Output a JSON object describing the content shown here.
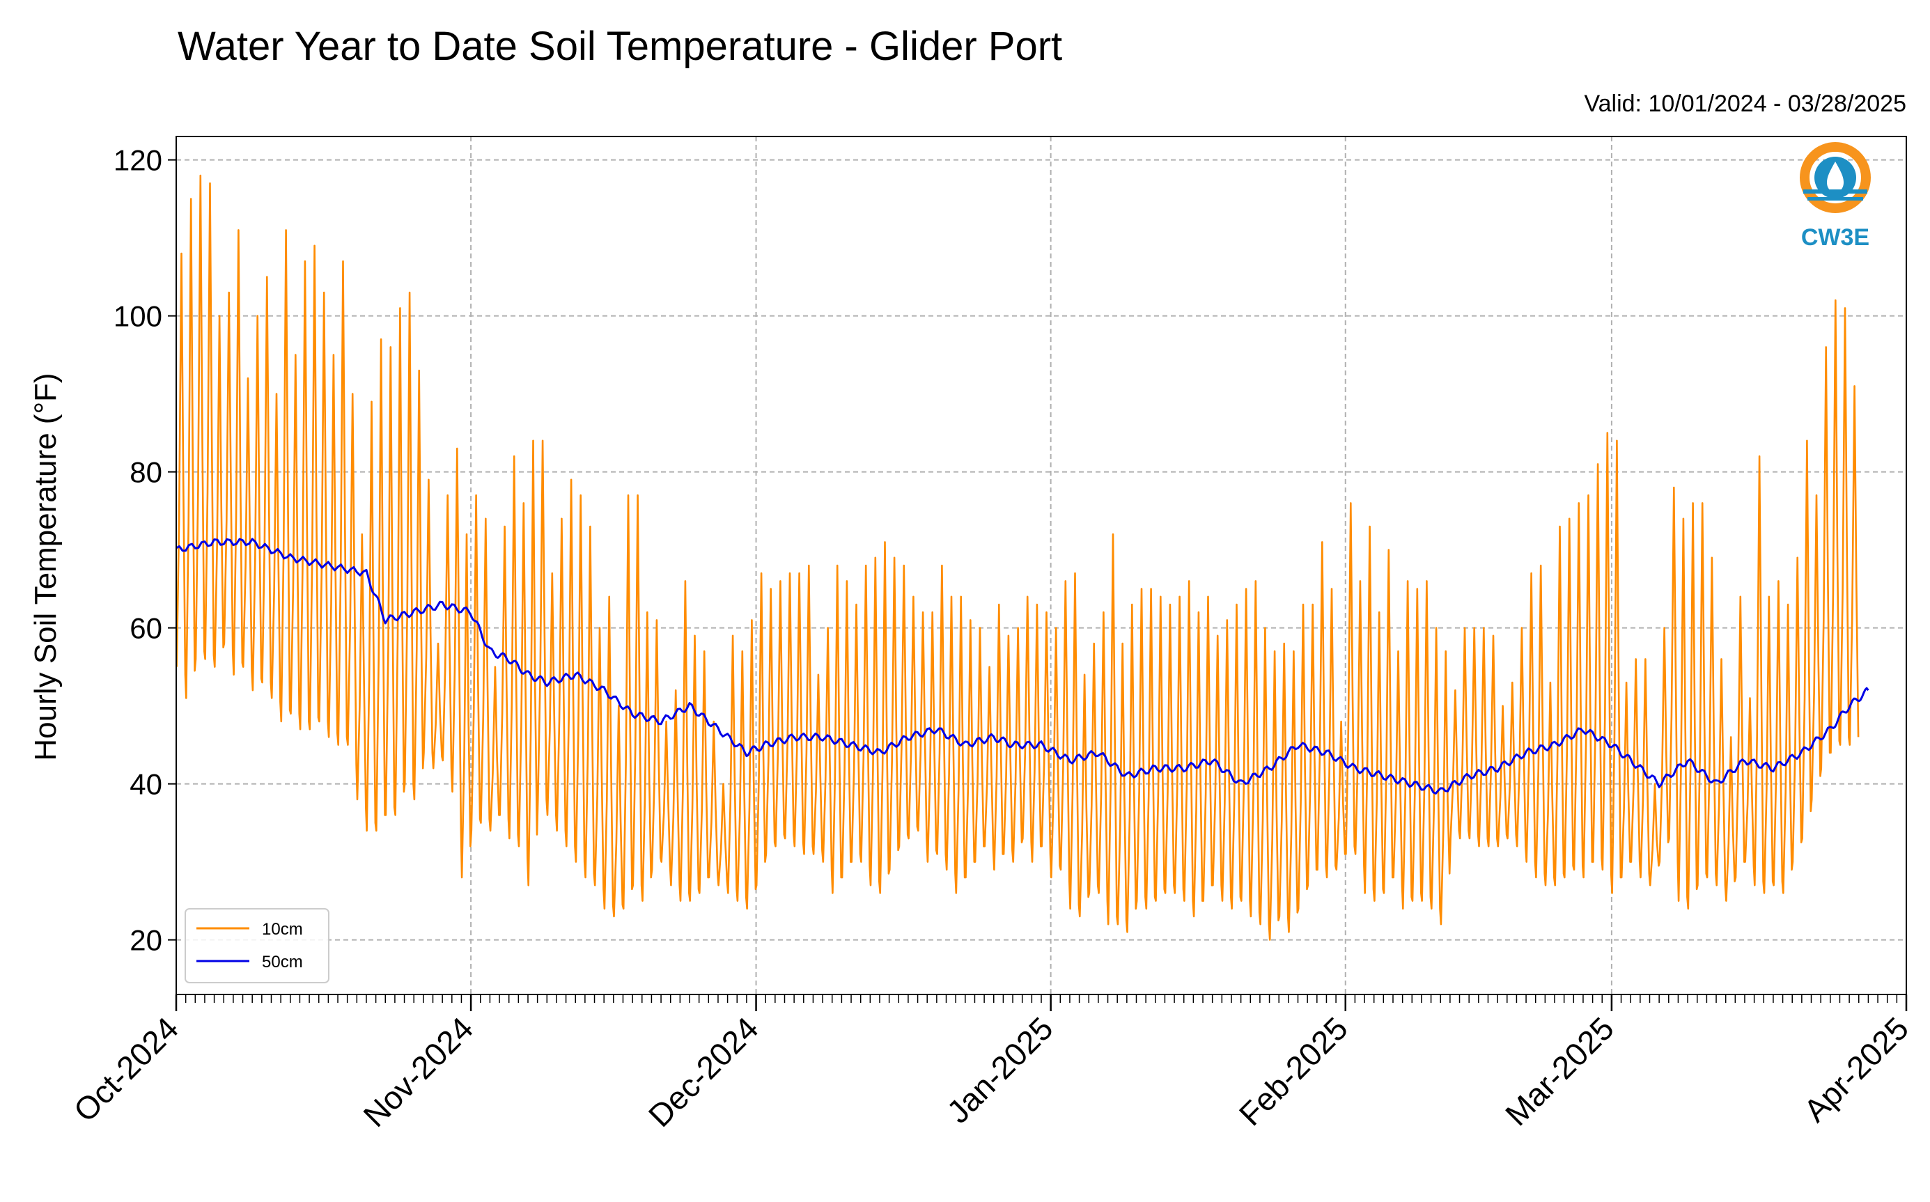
{
  "chart_data": {
    "type": "line",
    "title": "Water Year to Date Soil Temperature - Glider Port",
    "subtitle": "Valid: 10/01/2024 - 03/28/2025",
    "xlabel": "",
    "ylabel": "Hourly Soil Temperature (°F)",
    "ylim": [
      13,
      123
    ],
    "xlim": [
      "2024-10-01",
      "2025-04-01"
    ],
    "grid": true,
    "legend_placement": "lower-left",
    "logo_text": "CW3E",
    "x_ticks": [
      {
        "date": "2024-10-01",
        "label": "Oct-2024"
      },
      {
        "date": "2024-11-01",
        "label": "Nov-2024"
      },
      {
        "date": "2024-12-01",
        "label": "Dec-2024"
      },
      {
        "date": "2025-01-01",
        "label": "Jan-2025"
      },
      {
        "date": "2025-02-01",
        "label": "Feb-2025"
      },
      {
        "date": "2025-03-01",
        "label": "Mar-2025"
      },
      {
        "date": "2025-04-01",
        "label": "Apr-2025"
      }
    ],
    "y_ticks": [
      20,
      40,
      60,
      80,
      100,
      120
    ],
    "series": [
      {
        "name": "10cm",
        "color": "#ff8c00",
        "dates": [
          "2024-10-01",
          "2024-10-02",
          "2024-10-03",
          "2024-10-04",
          "2024-10-05",
          "2024-10-06",
          "2024-10-07",
          "2024-10-08",
          "2024-10-09",
          "2024-10-10",
          "2024-10-11",
          "2024-10-12",
          "2024-10-13",
          "2024-10-14",
          "2024-10-15",
          "2024-10-16",
          "2024-10-17",
          "2024-10-18",
          "2024-10-19",
          "2024-10-20",
          "2024-10-21",
          "2024-10-22",
          "2024-10-23",
          "2024-10-24",
          "2024-10-25",
          "2024-10-26",
          "2024-10-27",
          "2024-10-28",
          "2024-10-29",
          "2024-10-30",
          "2024-10-31",
          "2024-11-01",
          "2024-11-02",
          "2024-11-03",
          "2024-11-04",
          "2024-11-05",
          "2024-11-06",
          "2024-11-07",
          "2024-11-08",
          "2024-11-09",
          "2024-11-10",
          "2024-11-11",
          "2024-11-12",
          "2024-11-13",
          "2024-11-14",
          "2024-11-15",
          "2024-11-16",
          "2024-11-17",
          "2024-11-18",
          "2024-11-19",
          "2024-11-20",
          "2024-11-21",
          "2024-11-22",
          "2024-11-23",
          "2024-11-24",
          "2024-11-25",
          "2024-11-26",
          "2024-11-27",
          "2024-11-28",
          "2024-11-29",
          "2024-11-30",
          "2024-12-01",
          "2024-12-02",
          "2024-12-03",
          "2024-12-04",
          "2024-12-05",
          "2024-12-06",
          "2024-12-07",
          "2024-12-08",
          "2024-12-09",
          "2024-12-10",
          "2024-12-11",
          "2024-12-12",
          "2024-12-13",
          "2024-12-14",
          "2024-12-15",
          "2024-12-16",
          "2024-12-17",
          "2024-12-18",
          "2024-12-19",
          "2024-12-20",
          "2024-12-21",
          "2024-12-22",
          "2024-12-23",
          "2024-12-24",
          "2024-12-25",
          "2024-12-26",
          "2024-12-27",
          "2024-12-28",
          "2024-12-29",
          "2024-12-30",
          "2024-12-31",
          "2025-01-01",
          "2025-01-02",
          "2025-01-03",
          "2025-01-04",
          "2025-01-05",
          "2025-01-06",
          "2025-01-07",
          "2025-01-08",
          "2025-01-09",
          "2025-01-10",
          "2025-01-11",
          "2025-01-12",
          "2025-01-13",
          "2025-01-14",
          "2025-01-15",
          "2025-01-16",
          "2025-01-17",
          "2025-01-18",
          "2025-01-19",
          "2025-01-20",
          "2025-01-21",
          "2025-01-22",
          "2025-01-23",
          "2025-01-24",
          "2025-01-25",
          "2025-01-26",
          "2025-01-27",
          "2025-01-28",
          "2025-01-29",
          "2025-01-30",
          "2025-01-31",
          "2025-02-01",
          "2025-02-02",
          "2025-02-03",
          "2025-02-04",
          "2025-02-05",
          "2025-02-06",
          "2025-02-07",
          "2025-02-08",
          "2025-02-09",
          "2025-02-10",
          "2025-02-11",
          "2025-02-12",
          "2025-02-13",
          "2025-02-14",
          "2025-02-15",
          "2025-02-16",
          "2025-02-17",
          "2025-02-18",
          "2025-02-19",
          "2025-02-20",
          "2025-02-21",
          "2025-02-22",
          "2025-02-23",
          "2025-02-24",
          "2025-02-25",
          "2025-02-26",
          "2025-02-27",
          "2025-02-28",
          "2025-03-01",
          "2025-03-02",
          "2025-03-03",
          "2025-03-04",
          "2025-03-05",
          "2025-03-06",
          "2025-03-07",
          "2025-03-08",
          "2025-03-09",
          "2025-03-10",
          "2025-03-11",
          "2025-03-12",
          "2025-03-13",
          "2025-03-14",
          "2025-03-15",
          "2025-03-16",
          "2025-03-17",
          "2025-03-18",
          "2025-03-19",
          "2025-03-20",
          "2025-03-21",
          "2025-03-22",
          "2025-03-23",
          "2025-03-24",
          "2025-03-25",
          "2025-03-26",
          "2025-03-27",
          "2025-03-28"
        ],
        "daily_max": [
          108,
          115,
          118,
          117,
          100,
          103,
          111,
          92,
          100,
          105,
          90,
          111,
          95,
          107,
          109,
          103,
          95,
          107,
          90,
          72,
          89,
          97,
          96,
          101,
          103,
          93,
          79,
          58,
          77,
          83,
          72,
          77,
          74,
          55,
          73,
          82,
          76,
          84,
          84,
          67,
          74,
          79,
          77,
          73,
          60,
          64,
          50,
          77,
          77,
          62,
          61,
          48,
          52,
          66,
          59,
          57,
          48,
          40,
          59,
          57,
          61,
          67,
          65,
          66,
          67,
          67,
          68,
          54,
          60,
          68,
          66,
          63,
          68,
          69,
          71,
          69,
          68,
          64,
          62,
          62,
          68,
          64,
          64,
          61,
          60,
          55,
          63,
          59,
          60,
          64,
          63,
          62,
          60,
          66,
          67,
          54,
          58,
          62,
          72,
          58,
          63,
          65,
          65,
          64,
          63,
          64,
          66,
          62,
          64,
          59,
          61,
          63,
          65,
          66,
          60,
          57,
          58,
          57,
          63,
          63,
          71,
          65,
          48,
          76,
          66,
          73,
          62,
          70,
          57,
          66,
          65,
          66,
          60,
          57,
          52,
          60,
          60,
          60,
          59,
          50,
          53,
          60,
          67,
          68,
          53,
          73,
          74,
          76,
          77,
          81,
          85,
          84,
          53,
          56,
          56,
          40,
          60,
          78,
          74,
          76,
          76,
          69,
          56,
          46,
          64,
          51,
          82,
          64,
          66,
          63,
          69,
          84,
          77,
          96,
          102,
          101,
          91
        ],
        "daily_min": [
          55,
          51,
          56,
          56,
          55,
          58,
          54,
          55,
          52,
          53,
          51,
          48,
          49,
          47,
          47,
          48,
          46,
          45,
          45,
          38,
          34,
          34,
          36,
          36,
          40,
          38,
          44,
          42,
          43,
          39,
          28,
          34,
          35,
          34,
          36,
          33,
          32,
          27,
          38,
          36,
          34,
          32,
          30,
          28,
          27,
          24,
          23,
          24,
          27,
          25,
          29,
          30,
          27,
          25,
          25,
          26,
          28,
          27,
          26,
          25,
          24,
          27,
          31,
          32,
          33,
          32,
          31,
          31,
          30,
          26,
          28,
          30,
          30,
          27,
          26,
          29,
          32,
          33,
          34,
          30,
          31,
          29,
          26,
          28,
          30,
          32,
          29,
          31,
          30,
          33,
          30,
          32,
          28,
          29,
          24,
          23,
          26,
          26,
          22,
          22,
          21,
          25,
          24,
          25,
          26,
          26,
          25,
          23,
          25,
          27,
          25,
          24,
          25,
          23,
          22,
          20,
          23,
          21,
          24,
          27,
          29,
          28,
          29,
          31,
          31,
          26,
          25,
          26,
          28,
          24,
          25,
          25,
          24,
          22,
          33,
          33,
          33,
          32,
          32,
          32,
          33,
          32,
          30,
          28,
          27,
          27,
          28,
          29,
          28,
          30,
          29,
          26,
          28,
          30,
          28,
          27,
          30,
          33,
          25,
          24,
          27,
          28,
          27,
          25,
          28,
          30,
          27,
          26,
          27,
          26,
          30,
          33,
          38,
          42,
          44,
          45,
          45
        ]
      },
      {
        "name": "50cm",
        "color": "#0000e6",
        "dates": [
          "2024-10-01",
          "2024-10-05",
          "2024-10-09",
          "2024-10-13",
          "2024-10-17",
          "2024-10-21",
          "2024-10-23",
          "2024-10-26",
          "2024-10-29",
          "2024-11-01",
          "2024-11-03",
          "2024-11-05",
          "2024-11-07",
          "2024-11-09",
          "2024-11-12",
          "2024-11-15",
          "2024-11-18",
          "2024-11-21",
          "2024-11-24",
          "2024-11-27",
          "2024-11-30",
          "2024-12-02",
          "2024-12-05",
          "2024-12-08",
          "2024-12-11",
          "2024-12-14",
          "2024-12-17",
          "2024-12-20",
          "2024-12-23",
          "2024-12-26",
          "2024-12-28",
          "2024-12-31",
          "2025-01-03",
          "2025-01-06",
          "2025-01-09",
          "2025-01-12",
          "2025-01-15",
          "2025-01-18",
          "2025-01-21",
          "2025-01-24",
          "2025-01-27",
          "2025-01-30",
          "2025-02-02",
          "2025-02-05",
          "2025-02-08",
          "2025-02-11",
          "2025-02-14",
          "2025-02-17",
          "2025-02-20",
          "2025-02-23",
          "2025-02-26",
          "2025-03-01",
          "2025-03-03",
          "2025-03-06",
          "2025-03-09",
          "2025-03-12",
          "2025-03-15",
          "2025-03-18",
          "2025-03-21",
          "2025-03-24",
          "2025-03-26",
          "2025-03-28"
        ],
        "values": [
          70,
          71,
          71,
          69,
          68,
          67,
          61,
          62,
          63,
          62,
          57,
          56,
          54,
          53,
          54,
          52,
          49,
          48,
          50,
          47,
          44,
          45,
          46,
          46,
          45,
          44,
          46,
          47,
          45,
          46,
          45,
          45,
          43,
          44,
          41,
          42,
          42,
          43,
          40,
          42,
          45,
          44,
          42,
          41,
          40,
          39,
          41,
          42,
          44,
          45,
          47,
          45,
          43,
          40,
          43,
          40,
          43,
          42,
          44,
          47,
          50,
          52
        ]
      }
    ]
  }
}
